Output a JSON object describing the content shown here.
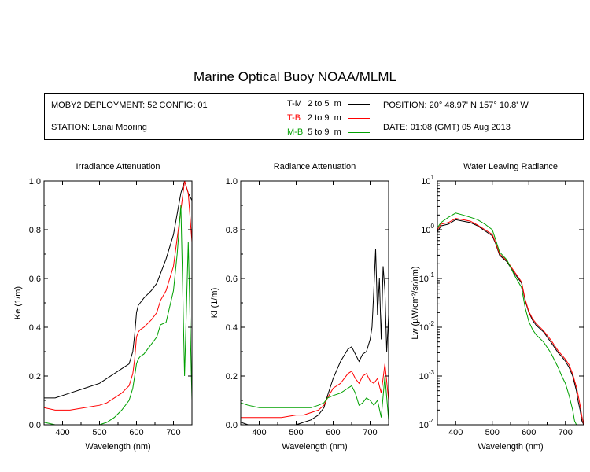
{
  "title": "Marine Optical Buoy NOAA/MLML",
  "info": {
    "deployment": "MOBY2 DEPLOYMENT: 52 CONFIG: 01",
    "station": "STATION: Lanai Mooring",
    "position": "POSITION: 20° 48.97' N   157° 10.8' W",
    "date": "DATE: 01:08 (GMT) 05 Aug 2013"
  },
  "legend": [
    {
      "name": "T-M",
      "range": "2 to 5",
      "unit": "m",
      "color": "#000000"
    },
    {
      "name": "T-B",
      "range": "2 to 9",
      "unit": "m",
      "color": "#ff0000"
    },
    {
      "name": "M-B",
      "range": "5 to 9",
      "unit": "m",
      "color": "#00a000"
    }
  ],
  "chart_data": [
    {
      "type": "line",
      "title": "Irradiance Attenuation",
      "xlabel": "Wavelength (nm)",
      "ylabel": "Ke  (1/m)",
      "xlim": [
        350,
        750
      ],
      "ylim": [
        0,
        1.0
      ],
      "xticks": [
        400,
        500,
        600,
        700
      ],
      "yticks": [
        0,
        0.2,
        0.4,
        0.6,
        0.8,
        1.0
      ],
      "yticklabels": [
        "0.0",
        "0.2",
        "0.4",
        "0.6",
        "0.8",
        "1.0"
      ],
      "series": [
        {
          "name": "T-M",
          "color": "#000000",
          "x": [
            350,
            380,
            420,
            460,
            500,
            520,
            540,
            560,
            580,
            590,
            595,
            600,
            605,
            610,
            620,
            640,
            655,
            665,
            680,
            700,
            720,
            730,
            740,
            750
          ],
          "y": [
            0.11,
            0.11,
            0.13,
            0.15,
            0.17,
            0.19,
            0.21,
            0.23,
            0.25,
            0.3,
            0.37,
            0.46,
            0.49,
            0.5,
            0.52,
            0.55,
            0.58,
            0.62,
            0.68,
            0.78,
            0.95,
            1.0,
            0.95,
            0.92
          ]
        },
        {
          "name": "T-B",
          "color": "#ff0000",
          "x": [
            350,
            380,
            420,
            460,
            500,
            520,
            540,
            560,
            580,
            590,
            595,
            600,
            605,
            610,
            620,
            640,
            655,
            665,
            680,
            700,
            720,
            730,
            740,
            750
          ],
          "y": [
            0.07,
            0.06,
            0.06,
            0.07,
            0.08,
            0.09,
            0.11,
            0.13,
            0.16,
            0.21,
            0.27,
            0.36,
            0.38,
            0.39,
            0.4,
            0.43,
            0.46,
            0.51,
            0.55,
            0.65,
            0.88,
            1.0,
            0.95,
            0.75
          ]
        },
        {
          "name": "M-B",
          "color": "#00a000",
          "x": [
            350,
            380,
            420,
            460,
            500,
            520,
            540,
            560,
            580,
            590,
            595,
            600,
            605,
            610,
            620,
            640,
            655,
            665,
            680,
            700,
            710,
            720,
            725,
            730,
            740,
            750
          ],
          "y": [
            0.01,
            0.0,
            0.0,
            0.0,
            0.0,
            0.01,
            0.03,
            0.06,
            0.1,
            0.15,
            0.2,
            0.25,
            0.27,
            0.28,
            0.29,
            0.33,
            0.36,
            0.41,
            0.42,
            0.55,
            0.7,
            0.9,
            0.55,
            0.2,
            0.75,
            0.1
          ]
        }
      ]
    },
    {
      "type": "line",
      "title": "Radiance Attenuation",
      "xlabel": "Wavelength (nm)",
      "ylabel": "Kl  (1/m)",
      "xlim": [
        350,
        750
      ],
      "ylim": [
        0,
        1.0
      ],
      "xticks": [
        400,
        500,
        600,
        700
      ],
      "yticks": [
        0,
        0.2,
        0.4,
        0.6,
        0.8,
        1.0
      ],
      "yticklabels": [
        "0.0",
        "0.2",
        "0.4",
        "0.6",
        "0.8",
        "1.0"
      ],
      "series": [
        {
          "name": "T-M",
          "color": "#000000",
          "x": [
            350,
            370,
            400,
            430,
            460,
            500,
            520,
            540,
            560,
            575,
            585,
            600,
            620,
            640,
            650,
            660,
            670,
            680,
            690,
            700,
            705,
            710,
            715,
            720,
            725,
            730,
            735,
            740,
            745,
            750
          ],
          "y": [
            0.01,
            0.0,
            -0.01,
            0.0,
            0.0,
            0.0,
            0.01,
            0.02,
            0.04,
            0.07,
            0.12,
            0.19,
            0.26,
            0.31,
            0.32,
            0.29,
            0.26,
            0.29,
            0.3,
            0.35,
            0.4,
            0.55,
            0.72,
            0.45,
            0.6,
            0.35,
            0.65,
            0.55,
            0.3,
            0.45
          ]
        },
        {
          "name": "T-B",
          "color": "#ff0000",
          "x": [
            350,
            370,
            400,
            430,
            460,
            500,
            520,
            540,
            560,
            575,
            585,
            600,
            620,
            640,
            650,
            660,
            670,
            680,
            690,
            700,
            710,
            720,
            730,
            740,
            750
          ],
          "y": [
            0.03,
            0.03,
            0.03,
            0.03,
            0.03,
            0.04,
            0.04,
            0.05,
            0.06,
            0.08,
            0.11,
            0.15,
            0.17,
            0.21,
            0.22,
            0.19,
            0.17,
            0.2,
            0.21,
            0.18,
            0.17,
            0.19,
            0.13,
            0.25,
            0.1
          ]
        },
        {
          "name": "M-B",
          "color": "#00a000",
          "x": [
            350,
            370,
            400,
            430,
            460,
            500,
            520,
            540,
            560,
            575,
            585,
            600,
            620,
            640,
            650,
            660,
            670,
            680,
            690,
            700,
            710,
            720,
            730,
            740,
            750
          ],
          "y": [
            0.09,
            0.08,
            0.07,
            0.07,
            0.07,
            0.07,
            0.07,
            0.07,
            0.08,
            0.09,
            0.11,
            0.12,
            0.13,
            0.15,
            0.16,
            0.13,
            0.08,
            0.09,
            0.11,
            0.1,
            0.08,
            0.1,
            0.03,
            0.2,
            0.02
          ]
        }
      ]
    },
    {
      "type": "line",
      "title": "Water Leaving Radiance",
      "xlabel": "Wavelength (nm)",
      "ylabel": "Lw  (µW/cm²/sr/nm)",
      "xlim": [
        350,
        750
      ],
      "ylim_log10": [
        -4,
        1
      ],
      "yscale": "log",
      "xticks": [
        400,
        500,
        600,
        700
      ],
      "yticks_exp": [
        -4,
        -3,
        -2,
        -1,
        0,
        1
      ],
      "series": [
        {
          "name": "T-M",
          "color": "#000000",
          "x": [
            350,
            360,
            380,
            400,
            420,
            440,
            460,
            480,
            500,
            510,
            520,
            540,
            560,
            580,
            590,
            600,
            610,
            620,
            640,
            660,
            680,
            690,
            700,
            710,
            720,
            725,
            730,
            735,
            740,
            745,
            750
          ],
          "y": [
            0.9,
            1.2,
            1.3,
            1.6,
            1.5,
            1.4,
            1.2,
            0.95,
            0.75,
            0.5,
            0.3,
            0.22,
            0.13,
            0.08,
            0.035,
            0.02,
            0.014,
            0.011,
            0.008,
            0.005,
            0.003,
            0.0025,
            0.002,
            0.0015,
            0.001,
            0.0007,
            0.0005,
            0.0003,
            0.0002,
            0.00012,
            0.0001
          ]
        },
        {
          "name": "T-B",
          "color": "#ff0000",
          "x": [
            350,
            360,
            380,
            400,
            420,
            440,
            460,
            480,
            500,
            510,
            520,
            540,
            560,
            580,
            590,
            600,
            610,
            620,
            640,
            660,
            680,
            690,
            700,
            710,
            720,
            725,
            730,
            735,
            740,
            745,
            750
          ],
          "y": [
            1.0,
            1.3,
            1.4,
            1.7,
            1.6,
            1.5,
            1.25,
            1.0,
            0.8,
            0.52,
            0.32,
            0.23,
            0.14,
            0.085,
            0.037,
            0.021,
            0.015,
            0.012,
            0.0085,
            0.0055,
            0.0033,
            0.0027,
            0.0022,
            0.0017,
            0.0011,
            0.0008,
            0.0006,
            0.0004,
            0.00025,
            0.00015,
            0.0001
          ]
        },
        {
          "name": "M-B",
          "color": "#00a000",
          "x": [
            350,
            360,
            380,
            400,
            420,
            440,
            460,
            480,
            500,
            510,
            520,
            540,
            560,
            580,
            590,
            600,
            610,
            620,
            640,
            660,
            680,
            690,
            700,
            710,
            720,
            725,
            730
          ],
          "y": [
            1.1,
            1.4,
            1.8,
            2.2,
            2.0,
            1.8,
            1.6,
            1.3,
            1.0,
            0.6,
            0.35,
            0.24,
            0.12,
            0.065,
            0.025,
            0.013,
            0.009,
            0.007,
            0.005,
            0.003,
            0.0015,
            0.001,
            0.0007,
            0.0004,
            0.0002,
            0.00012,
            0.0001
          ]
        }
      ]
    }
  ]
}
